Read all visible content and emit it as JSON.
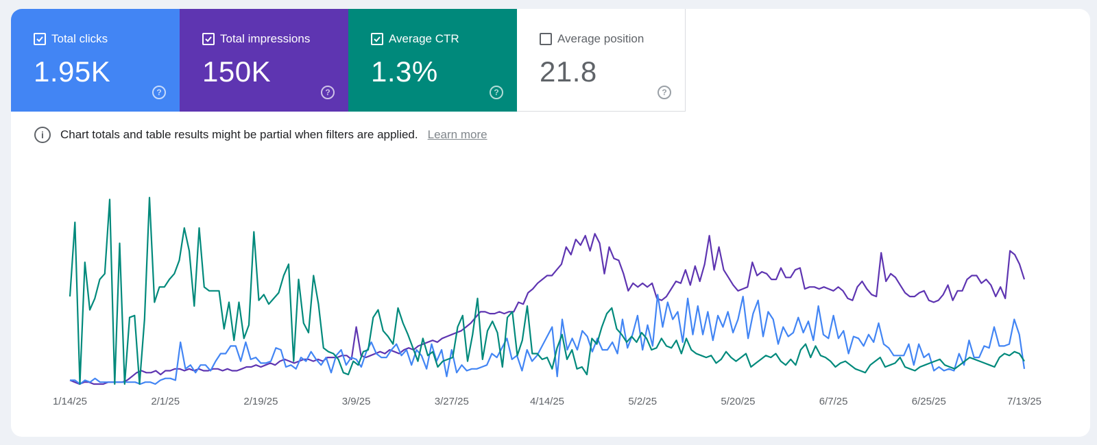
{
  "metrics": {
    "clicks": {
      "label": "Total clicks",
      "value": "1.95K",
      "checked": true,
      "color": "#4285f4"
    },
    "impressions": {
      "label": "Total impressions",
      "value": "150K",
      "checked": true,
      "color": "#5e35b1"
    },
    "ctr": {
      "label": "Average CTR",
      "value": "1.3%",
      "checked": true,
      "color": "#00897b"
    },
    "position": {
      "label": "Average position",
      "value": "21.8",
      "checked": false
    }
  },
  "notice": {
    "text": "Chart totals and table results might be partial when filters are applied.",
    "link": "Learn more"
  },
  "chart_data": {
    "type": "line",
    "x_tick_labels": [
      "1/14/25",
      "2/1/25",
      "2/19/25",
      "3/9/25",
      "3/27/25",
      "4/14/25",
      "5/2/25",
      "5/20/25",
      "6/7/25",
      "6/25/25",
      "7/13/25"
    ],
    "grid": false,
    "legend": "none",
    "y_unit": "relative (0–100, axis not shown)",
    "series": [
      {
        "color": "#5e35b1",
        "values": [
          2,
          1,
          0,
          1,
          1,
          0,
          0,
          0,
          1,
          1,
          1,
          1,
          2,
          4,
          6,
          7,
          6,
          6,
          7,
          5,
          7,
          7,
          8,
          8,
          7,
          8,
          7,
          8,
          7,
          7,
          8,
          8,
          7,
          8,
          7,
          7,
          8,
          9,
          9,
          10,
          9,
          10,
          11,
          10,
          12,
          13,
          12,
          11,
          12,
          13,
          13,
          12,
          13,
          12,
          14,
          14,
          14,
          15,
          15,
          13,
          30,
          15,
          14,
          15,
          16,
          17,
          16,
          18,
          17,
          16,
          18,
          19,
          18,
          20,
          21,
          22,
          23,
          22,
          24,
          25,
          26,
          27,
          28,
          30,
          32,
          35,
          38,
          38,
          37,
          37,
          38,
          37,
          38,
          38,
          43,
          42,
          48,
          50,
          53,
          55,
          57,
          57,
          60,
          63,
          72,
          68,
          76,
          73,
          78,
          70,
          79,
          74,
          58,
          72,
          66,
          65,
          58,
          49,
          53,
          51,
          53,
          51,
          53,
          45,
          44,
          46,
          50,
          54,
          53,
          60,
          52,
          62,
          54,
          63,
          78,
          60,
          72,
          60,
          56,
          52,
          49,
          50,
          51,
          64,
          57,
          59,
          58,
          55,
          55,
          61,
          56,
          56,
          60,
          61,
          50,
          51,
          51,
          50,
          51,
          50,
          49,
          51,
          49,
          45,
          44,
          51,
          54,
          50,
          47,
          46,
          69,
          54,
          58,
          56,
          52,
          48,
          46,
          46,
          48,
          49,
          44,
          43,
          44,
          47,
          52,
          44,
          49,
          49,
          55,
          57,
          57,
          53,
          55,
          52,
          46,
          51,
          45,
          70,
          68,
          63,
          55
        ]
      },
      {
        "color": "#4285f4",
        "values": [
          2,
          2,
          0,
          2,
          1,
          3,
          1,
          1,
          1,
          1,
          1,
          1,
          1,
          1,
          0,
          1,
          1,
          0,
          2,
          3,
          3,
          2,
          22,
          8,
          10,
          6,
          10,
          10,
          7,
          12,
          16,
          16,
          20,
          20,
          12,
          22,
          13,
          14,
          11,
          11,
          12,
          19,
          18,
          9,
          10,
          8,
          14,
          12,
          17,
          13,
          10,
          14,
          6,
          15,
          18,
          10,
          14,
          13,
          9,
          17,
          22,
          16,
          14,
          14,
          18,
          21,
          15,
          18,
          10,
          18,
          15,
          8,
          21,
          12,
          18,
          4,
          18,
          6,
          10,
          7,
          8,
          8,
          9,
          10,
          16,
          14,
          19,
          24,
          13,
          15,
          7,
          18,
          12,
          15,
          20,
          25,
          30,
          4,
          34,
          18,
          24,
          18,
          28,
          25,
          17,
          24,
          18,
          18,
          22,
          16,
          34,
          19,
          26,
          36,
          18,
          31,
          20,
          47,
          30,
          43,
          34,
          38,
          22,
          45,
          26,
          41,
          26,
          38,
          23,
          36,
          30,
          38,
          27,
          34,
          46,
          24,
          37,
          44,
          25,
          38,
          34,
          21,
          30,
          25,
          27,
          35,
          27,
          33,
          23,
          41,
          26,
          24,
          36,
          24,
          28,
          16,
          25,
          24,
          20,
          26,
          22,
          32,
          21,
          19,
          15,
          15,
          15,
          21,
          10,
          21,
          14,
          16,
          7,
          9,
          7,
          8,
          7,
          16,
          10,
          23,
          14,
          14,
          20,
          19,
          30,
          20,
          20,
          21,
          34,
          26,
          8
        ]
      },
      {
        "color": "#00897b",
        "values": [
          46,
          85,
          0,
          64,
          39,
          45,
          55,
          58,
          97,
          0,
          74,
          0,
          35,
          36,
          0,
          34,
          98,
          43,
          51,
          51,
          55,
          58,
          65,
          82,
          70,
          41,
          82,
          51,
          49,
          49,
          49,
          29,
          43,
          23,
          43,
          24,
          31,
          80,
          44,
          47,
          42,
          45,
          48,
          57,
          63,
          12,
          55,
          32,
          27,
          57,
          42,
          19,
          17,
          16,
          13,
          6,
          5,
          12,
          10,
          17,
          18,
          35,
          39,
          28,
          25,
          21,
          40,
          32,
          26,
          19,
          12,
          24,
          15,
          17,
          9,
          12,
          13,
          14,
          30,
          36,
          12,
          26,
          45,
          13,
          28,
          33,
          27,
          9,
          35,
          38,
          15,
          23,
          41,
          16,
          16,
          13,
          14,
          8,
          19,
          26,
          13,
          18,
          8,
          9,
          5,
          24,
          21,
          30,
          37,
          40,
          29,
          26,
          22,
          25,
          22,
          27,
          24,
          18,
          19,
          24,
          20,
          19,
          23,
          16,
          24,
          18,
          16,
          15,
          14,
          15,
          11,
          13,
          17,
          14,
          12,
          14,
          16,
          9,
          11,
          13,
          15,
          14,
          16,
          12,
          10,
          13,
          10,
          18,
          21,
          14,
          20,
          15,
          14,
          12,
          9,
          11,
          12,
          10,
          8,
          7,
          6,
          10,
          12,
          14,
          9,
          10,
          11,
          14,
          9,
          8,
          7,
          9,
          10,
          11,
          12,
          13,
          10,
          9,
          8,
          10,
          12,
          14,
          13,
          12,
          11,
          10,
          9,
          14,
          16,
          15,
          17,
          16,
          12
        ]
      }
    ]
  }
}
